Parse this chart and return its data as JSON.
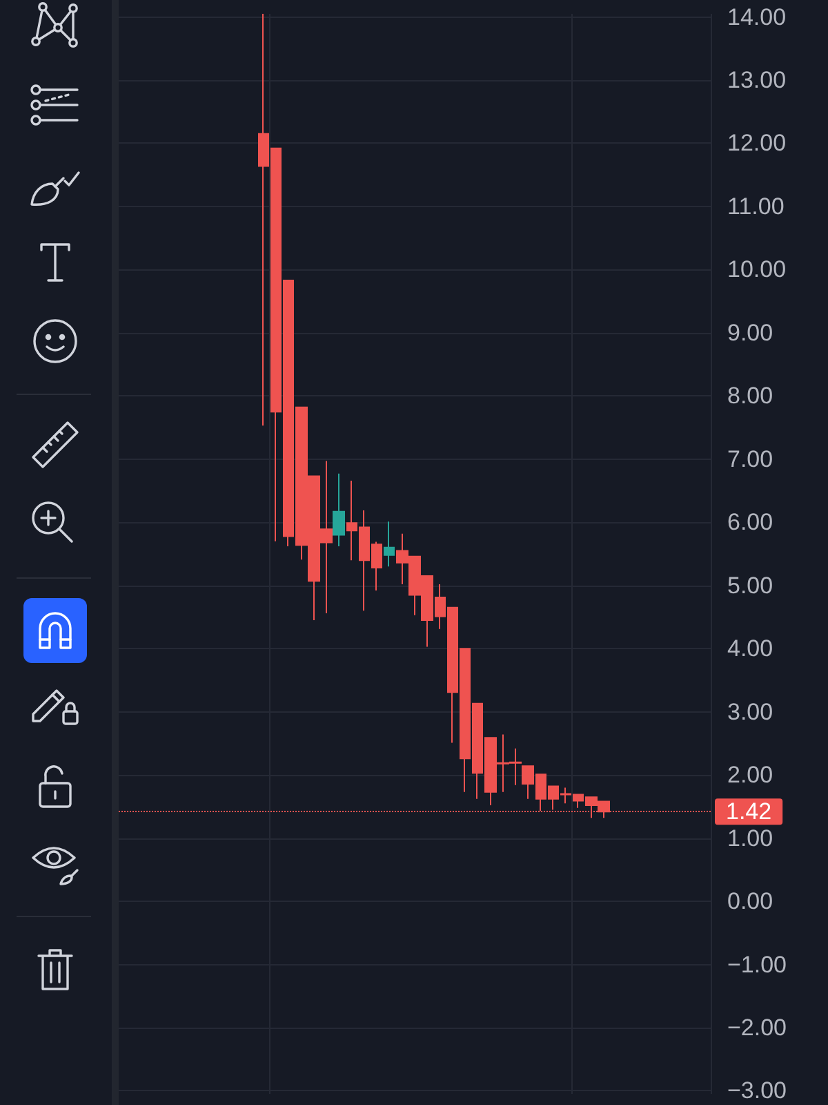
{
  "chart_data": {
    "type": "candlestick",
    "categories": [
      null,
      null,
      null,
      null,
      null,
      null,
      null,
      null,
      null,
      null,
      null,
      null,
      null,
      null,
      null,
      null,
      null,
      null,
      null,
      null,
      null,
      null,
      null,
      null,
      null,
      null,
      null,
      null,
      null,
      null,
      null,
      null,
      null,
      null,
      null,
      null,
      null,
      null,
      null,
      null,
      null,
      null,
      null,
      null,
      null,
      null,
      null
    ],
    "ohlc": [
      null,
      null,
      null,
      null,
      null,
      null,
      null,
      null,
      null,
      null,
      null,
      [
        12.15,
        14.05,
        7.53,
        11.64
      ],
      [
        11.92,
        11.92,
        5.7,
        7.75
      ],
      [
        9.83,
        9.83,
        5.62,
        5.78
      ],
      [
        7.82,
        7.82,
        5.41,
        5.64
      ],
      [
        6.73,
        6.73,
        4.45,
        5.07
      ],
      [
        5.89,
        6.97,
        4.56,
        5.68
      ],
      [
        5.8,
        6.77,
        5.62,
        6.17
      ],
      [
        5.99,
        6.66,
        5.4,
        5.87
      ],
      [
        5.92,
        6.19,
        4.6,
        5.4
      ],
      [
        5.65,
        5.69,
        4.92,
        5.28
      ],
      [
        5.48,
        6.01,
        5.3,
        5.6
      ],
      [
        5.55,
        5.82,
        5.02,
        5.36
      ],
      [
        5.46,
        5.46,
        4.53,
        4.85
      ],
      [
        5.15,
        5.15,
        4.03,
        4.45
      ],
      [
        4.81,
        5.02,
        4.31,
        4.51
      ],
      [
        4.65,
        4.65,
        2.51,
        3.31
      ],
      [
        4.0,
        4.0,
        1.73,
        2.26
      ],
      [
        3.13,
        3.13,
        1.62,
        2.03
      ],
      [
        2.59,
        2.59,
        1.52,
        1.73
      ],
      [
        2.19,
        2.64,
        1.73,
        2.18
      ],
      [
        2.2,
        2.42,
        1.84,
        2.19
      ],
      [
        2.14,
        2.14,
        1.62,
        1.86
      ],
      [
        2.01,
        2.01,
        1.43,
        1.62
      ],
      [
        1.82,
        1.82,
        1.45,
        1.62
      ],
      [
        1.7,
        1.8,
        1.55,
        1.69
      ],
      [
        1.69,
        1.69,
        1.48,
        1.59
      ],
      [
        1.65,
        1.65,
        1.32,
        1.52
      ],
      [
        1.58,
        1.58,
        1.32,
        1.42
      ],
      null,
      null,
      null,
      null,
      null,
      null,
      null,
      null
    ],
    "colors": [
      null,
      null,
      null,
      null,
      null,
      null,
      null,
      null,
      null,
      null,
      null,
      "#ef5350",
      "#ef5350",
      "#ef5350",
      "#ef5350",
      "#ef5350",
      "#ef5350",
      "#26a69a",
      "#ef5350",
      "#ef5350",
      "#ef5350",
      "#26a69a",
      "#ef5350",
      "#ef5350",
      "#ef5350",
      "#ef5350",
      "#ef5350",
      "#ef5350",
      "#ef5350",
      "#ef5350",
      "#ef5350",
      "#ef5350",
      "#ef5350",
      "#ef5350",
      "#ef5350",
      "#ef5350",
      "#ef5350",
      "#ef5350",
      "#ef5350",
      null,
      null,
      null,
      null,
      null,
      null,
      null,
      null
    ],
    "ylim": [
      -3.05,
      14.05
    ],
    "yticks": [
      {
        "value": 14,
        "label": "14.00"
      },
      {
        "value": 13,
        "label": "13.00"
      },
      {
        "value": 12,
        "label": "12.00"
      },
      {
        "value": 11,
        "label": "11.00"
      },
      {
        "value": 10,
        "label": "10.00"
      },
      {
        "value": 9,
        "label": "9.00"
      },
      {
        "value": 8,
        "label": "8.00"
      },
      {
        "value": 7,
        "label": "7.00"
      },
      {
        "value": 6,
        "label": "6.00"
      },
      {
        "value": 5,
        "label": "5.00"
      },
      {
        "value": 4,
        "label": "4.00"
      },
      {
        "value": 3,
        "label": "3.00"
      },
      {
        "value": 2,
        "label": "2.00"
      },
      {
        "value": 1,
        "label": "1.00"
      },
      {
        "value": 0,
        "label": "0.00"
      },
      {
        "value": -1,
        "label": "−1.00"
      },
      {
        "value": -2,
        "label": "−2.00"
      },
      {
        "value": -3,
        "label": "−3.00"
      }
    ],
    "grid": true,
    "tick_labels": "y",
    "ref_lines": [
      {
        "axis": "y",
        "value": 1.42,
        "label": "1.42",
        "color": "#ef5350",
        "line_style": "dotted"
      }
    ]
  }
}
